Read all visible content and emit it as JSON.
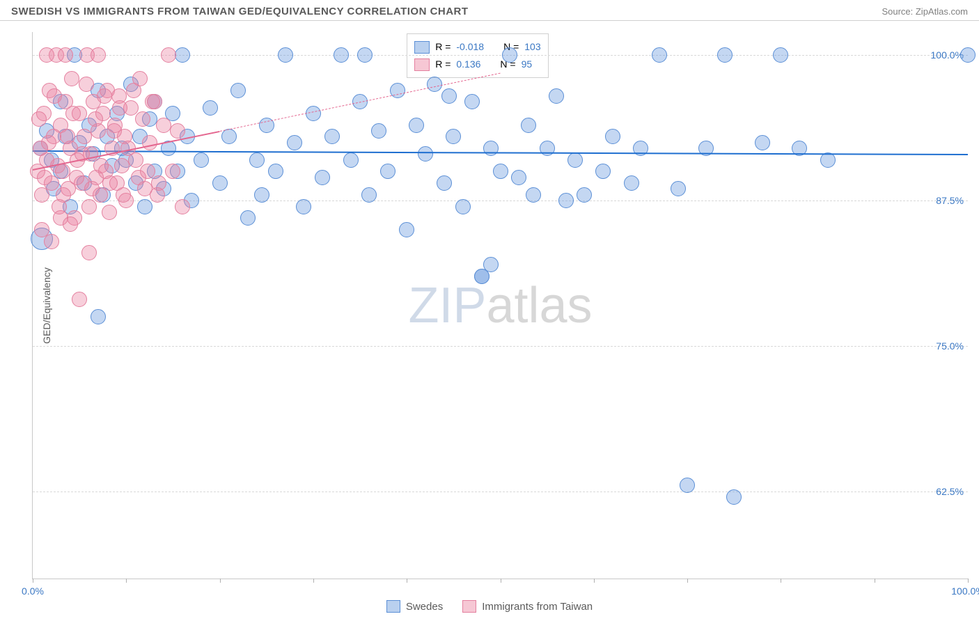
{
  "title": "SWEDISH VS IMMIGRANTS FROM TAIWAN GED/EQUIVALENCY CORRELATION CHART",
  "source": "Source: ZipAtlas.com",
  "ylabel": "GED/Equivalency",
  "watermark_a": "ZIP",
  "watermark_b": "atlas",
  "chart": {
    "type": "scatter",
    "xlim": [
      0,
      100
    ],
    "ylim": [
      55,
      102
    ],
    "x_ticks": [
      0,
      10,
      20,
      30,
      40,
      50,
      60,
      70,
      80,
      90,
      100
    ],
    "x_tick_labels": {
      "0": "0.0%",
      "100": "100.0%"
    },
    "y_grid": [
      62.5,
      75.0,
      87.5,
      100.0
    ],
    "y_tick_labels": [
      "62.5%",
      "75.0%",
      "87.5%",
      "100.0%"
    ],
    "background_color": "#ffffff",
    "grid_color": "#d8d8d8",
    "axis_color": "#c8c8c8",
    "tick_label_color": "#3b78c4",
    "label_fontsize": 14,
    "title_fontsize": 15,
    "marker_radius": 11,
    "marker_radius_large": 16,
    "marker_opacity": 0.45,
    "series": [
      {
        "name": "Swedes",
        "color_fill": "rgba(100,150,220,0.38)",
        "color_stroke": "#5b8fd6",
        "trend_color": "#1f6fd0",
        "trend_style": "solid",
        "trend": {
          "x1": 0,
          "y1": 91.8,
          "x2": 100,
          "y2": 91.5
        },
        "legend_R": "-0.018",
        "legend_N": "103",
        "points": [
          [
            1.0,
            84.2,
            16
          ],
          [
            0.8,
            92.0
          ],
          [
            1.5,
            93.5
          ],
          [
            2.0,
            91.0
          ],
          [
            2.2,
            88.5
          ],
          [
            3.0,
            96.0
          ],
          [
            3.0,
            90.0
          ],
          [
            3.5,
            93.0
          ],
          [
            4.0,
            87.0
          ],
          [
            4.5,
            100.0
          ],
          [
            5.0,
            92.5
          ],
          [
            5.5,
            89.0
          ],
          [
            6.0,
            94.0
          ],
          [
            6.5,
            91.5
          ],
          [
            7.0,
            97.0
          ],
          [
            7.5,
            88.0
          ],
          [
            8.0,
            93.0
          ],
          [
            8.5,
            90.5
          ],
          [
            9.0,
            95.0
          ],
          [
            9.5,
            92.0
          ],
          [
            10.0,
            91.0
          ],
          [
            10.5,
            97.5
          ],
          [
            11.0,
            89.0
          ],
          [
            11.5,
            93.0
          ],
          [
            12.0,
            87.0
          ],
          [
            12.5,
            94.5
          ],
          [
            13.0,
            90.0
          ],
          [
            13.0,
            96.0
          ],
          [
            14.0,
            88.5
          ],
          [
            14.5,
            92.0
          ],
          [
            15.0,
            95.0
          ],
          [
            15.5,
            90.0
          ],
          [
            16.0,
            100.0
          ],
          [
            16.5,
            93.0
          ],
          [
            17.0,
            87.5
          ],
          [
            18.0,
            91.0
          ],
          [
            19.0,
            95.5
          ],
          [
            20.0,
            89.0
          ],
          [
            21.0,
            93.0
          ],
          [
            22.0,
            97.0
          ],
          [
            23.0,
            86.0
          ],
          [
            24.0,
            91.0
          ],
          [
            24.5,
            88.0
          ],
          [
            25.0,
            94.0
          ],
          [
            26.0,
            90.0
          ],
          [
            27.0,
            100.0
          ],
          [
            28.0,
            92.5
          ],
          [
            29.0,
            87.0
          ],
          [
            30.0,
            95.0
          ],
          [
            31.0,
            89.5
          ],
          [
            32.0,
            93.0
          ],
          [
            33.0,
            100.0
          ],
          [
            34.0,
            91.0
          ],
          [
            35.0,
            96.0
          ],
          [
            35.5,
            100.0
          ],
          [
            36.0,
            88.0
          ],
          [
            37.0,
            93.5
          ],
          [
            38.0,
            90.0
          ],
          [
            39.0,
            97.0
          ],
          [
            40.0,
            85.0
          ],
          [
            41.0,
            94.0
          ],
          [
            42.0,
            91.5
          ],
          [
            43.0,
            97.5
          ],
          [
            44.0,
            89.0
          ],
          [
            44.5,
            96.5
          ],
          [
            45.0,
            93.0
          ],
          [
            46.0,
            87.0
          ],
          [
            47.0,
            96.0
          ],
          [
            48.0,
            81.0
          ],
          [
            49.0,
            92.0
          ],
          [
            50.0,
            90.0
          ],
          [
            51.0,
            100.0
          ],
          [
            52.0,
            89.5
          ],
          [
            53.0,
            94.0
          ],
          [
            53.5,
            88.0
          ],
          [
            55.0,
            92.0
          ],
          [
            56.0,
            96.5
          ],
          [
            57.0,
            87.5
          ],
          [
            58.0,
            91.0
          ],
          [
            59.0,
            88.0
          ],
          [
            61.0,
            90.0
          ],
          [
            62.0,
            93.0
          ],
          [
            64.0,
            89.0
          ],
          [
            65.0,
            92.0
          ],
          [
            67.0,
            100.0
          ],
          [
            69.0,
            88.5
          ],
          [
            70.0,
            63.0
          ],
          [
            72.0,
            92.0
          ],
          [
            74.0,
            100.0
          ],
          [
            75.0,
            62.0
          ],
          [
            78.0,
            92.5
          ],
          [
            80.0,
            100.0
          ],
          [
            82.0,
            92.0
          ],
          [
            85.0,
            91.0
          ],
          [
            100.0,
            100.0
          ],
          [
            7.0,
            77.5
          ],
          [
            48.0,
            81.0
          ],
          [
            49.0,
            82.0
          ]
        ]
      },
      {
        "name": "Immigrants from Taiwan",
        "color_fill": "rgba(235,130,160,0.38)",
        "color_stroke": "#e4809f",
        "trend_color": "#e4668f",
        "trend_style": "solid_then_dashed",
        "trend_solid": {
          "x1": 0,
          "y1": 90.2,
          "x2": 20,
          "y2": 93.5
        },
        "trend_dashed": {
          "x1": 20,
          "y1": 93.5,
          "x2": 50,
          "y2": 98.5
        },
        "legend_R": "0.136",
        "legend_N": "95",
        "points": [
          [
            0.5,
            90.0
          ],
          [
            0.8,
            92.0
          ],
          [
            1.0,
            88.0
          ],
          [
            1.2,
            95.0
          ],
          [
            1.5,
            91.0
          ],
          [
            1.8,
            97.0
          ],
          [
            2.0,
            89.0
          ],
          [
            2.2,
            93.0
          ],
          [
            2.5,
            100.0
          ],
          [
            2.8,
            87.0
          ],
          [
            3.0,
            94.0
          ],
          [
            3.2,
            90.0
          ],
          [
            3.5,
            96.0
          ],
          [
            3.8,
            88.5
          ],
          [
            4.0,
            92.0
          ],
          [
            4.2,
            98.0
          ],
          [
            4.5,
            86.0
          ],
          [
            4.8,
            91.0
          ],
          [
            5.0,
            95.0
          ],
          [
            5.2,
            89.0
          ],
          [
            5.5,
            93.0
          ],
          [
            5.8,
            100.0
          ],
          [
            6.0,
            87.0
          ],
          [
            6.2,
            91.5
          ],
          [
            6.5,
            96.0
          ],
          [
            6.8,
            89.5
          ],
          [
            7.0,
            93.5
          ],
          [
            7.2,
            88.0
          ],
          [
            7.5,
            95.0
          ],
          [
            7.8,
            90.0
          ],
          [
            8.0,
            97.0
          ],
          [
            8.2,
            86.5
          ],
          [
            8.5,
            92.0
          ],
          [
            8.8,
            94.0
          ],
          [
            9.0,
            89.0
          ],
          [
            9.2,
            96.5
          ],
          [
            9.5,
            90.5
          ],
          [
            9.8,
            93.0
          ],
          [
            10.0,
            87.5
          ],
          [
            10.5,
            95.5
          ],
          [
            11.0,
            91.0
          ],
          [
            11.5,
            98.0
          ],
          [
            12.0,
            88.5
          ],
          [
            12.5,
            92.5
          ],
          [
            13.0,
            96.0
          ],
          [
            13.5,
            89.0
          ],
          [
            14.0,
            94.0
          ],
          [
            14.5,
            100.0
          ],
          [
            15.0,
            90.0
          ],
          [
            15.5,
            93.5
          ],
          [
            16.0,
            87.0
          ],
          [
            1.0,
            85.0
          ],
          [
            2.0,
            84.0
          ],
          [
            3.0,
            86.0
          ],
          [
            4.0,
            85.5
          ],
          [
            5.0,
            79.0
          ],
          [
            6.0,
            83.0
          ],
          [
            1.5,
            100.0
          ],
          [
            3.5,
            100.0
          ],
          [
            7.0,
            100.0
          ],
          [
            0.7,
            94.5
          ],
          [
            1.3,
            89.5
          ],
          [
            1.7,
            92.5
          ],
          [
            2.3,
            96.5
          ],
          [
            2.7,
            90.5
          ],
          [
            3.3,
            88.0
          ],
          [
            3.7,
            93.0
          ],
          [
            4.3,
            95.0
          ],
          [
            4.7,
            89.5
          ],
          [
            5.3,
            91.5
          ],
          [
            5.7,
            97.5
          ],
          [
            6.3,
            88.5
          ],
          [
            6.7,
            94.5
          ],
          [
            7.3,
            90.5
          ],
          [
            7.7,
            96.5
          ],
          [
            8.3,
            89.0
          ],
          [
            8.7,
            93.5
          ],
          [
            9.3,
            95.5
          ],
          [
            9.7,
            88.0
          ],
          [
            10.2,
            92.0
          ],
          [
            10.8,
            97.0
          ],
          [
            11.3,
            89.5
          ],
          [
            11.8,
            94.5
          ],
          [
            12.3,
            90.0
          ],
          [
            12.8,
            96.0
          ],
          [
            13.3,
            88.0
          ]
        ]
      }
    ]
  },
  "legend_bottom": [
    {
      "label": "Swedes",
      "fill": "rgba(100,150,220,0.45)",
      "stroke": "#5b8fd6"
    },
    {
      "label": "Immigrants from Taiwan",
      "fill": "rgba(235,130,160,0.45)",
      "stroke": "#e4809f"
    }
  ],
  "legend_box": {
    "rows": [
      {
        "fill": "rgba(100,150,220,0.45)",
        "stroke": "#5b8fd6",
        "R": "-0.018",
        "N": "103"
      },
      {
        "fill": "rgba(235,130,160,0.45)",
        "stroke": "#e4809f",
        "R": "0.136",
        "N": "95"
      }
    ],
    "R_label": "R =",
    "N_label": "N ="
  }
}
